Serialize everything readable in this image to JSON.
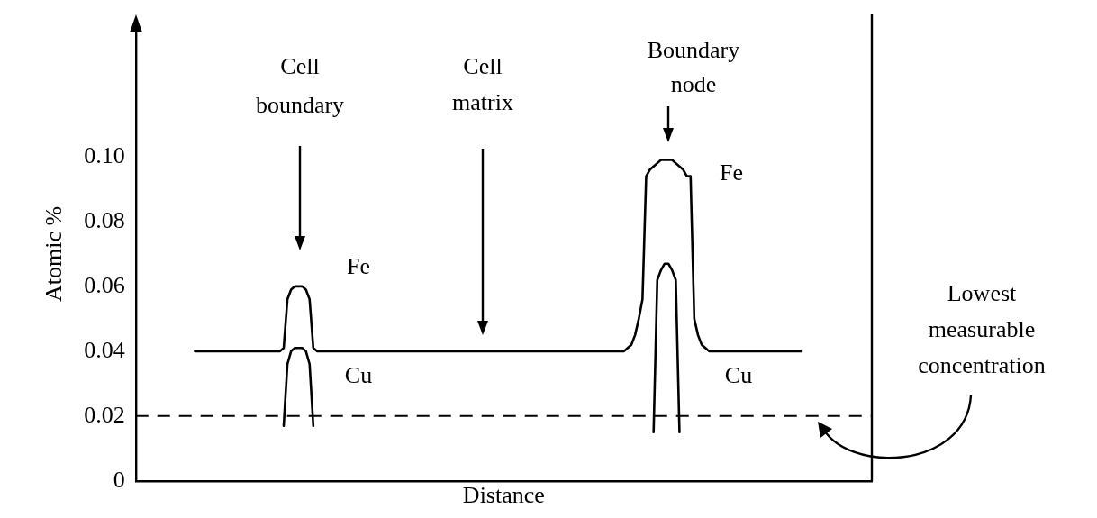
{
  "chart_data": {
    "type": "line",
    "xlabel": "Distance",
    "ylabel": "Atomic %",
    "ylim": [
      0,
      0.14
    ],
    "yticks": [
      0,
      0.02,
      0.04,
      0.06,
      0.08,
      {
        "value": 0.1,
        "label": "0.10"
      }
    ],
    "tick_labels": "y",
    "grid": false,
    "legend": false,
    "marker": "none",
    "line_style": "solid",
    "categories": [
      null,
      null,
      null,
      null,
      null,
      null,
      null,
      null,
      null,
      null,
      null,
      null,
      null,
      null,
      null,
      null,
      null,
      null,
      null,
      null,
      null,
      null,
      null,
      null,
      null,
      null,
      null,
      null,
      null,
      null,
      null,
      null,
      null,
      null,
      null,
      null,
      null,
      null,
      null,
      null,
      null,
      null,
      null,
      null,
      null,
      null,
      null,
      null,
      null,
      null,
      null,
      null,
      null,
      null,
      null,
      null,
      null,
      null,
      null,
      null,
      null,
      null,
      null,
      null,
      null,
      null,
      null,
      null,
      null,
      null,
      null,
      null,
      null,
      null,
      null,
      null,
      null,
      null,
      null,
      null,
      null,
      null,
      null,
      null,
      null,
      null,
      null,
      null,
      null,
      null,
      null,
      null,
      null,
      null,
      null,
      null,
      null,
      null,
      null,
      null,
      null,
      null,
      null,
      null,
      null,
      null,
      null,
      null,
      null,
      null,
      null,
      null,
      null,
      null,
      null,
      null,
      null,
      null,
      null,
      null,
      null,
      null,
      null,
      null,
      null,
      null,
      null,
      null,
      null,
      null,
      null,
      null,
      null,
      null,
      null,
      null,
      null,
      null,
      null,
      null,
      null,
      null,
      null,
      null,
      null,
      null,
      null,
      null,
      null,
      null,
      null,
      null,
      null,
      null,
      null,
      null,
      null,
      null,
      null,
      null,
      null,
      null,
      null,
      null,
      null,
      null,
      null,
      null,
      null,
      null,
      null,
      null,
      null,
      null,
      null,
      null,
      null,
      null,
      null,
      null,
      null,
      null,
      null,
      null,
      null,
      null,
      null,
      null,
      null,
      null,
      null,
      null,
      null,
      null,
      null,
      null,
      null,
      null,
      null,
      null
    ],
    "series": [
      {
        "color": "#000000",
        "values": [
          null,
          null,
          null,
          null,
          null,
          null,
          null,
          null,
          null,
          null,
          null,
          null,
          null,
          null,
          null,
          null,
          0.04,
          0.04,
          0.04,
          0.04,
          0.04,
          0.04,
          0.04,
          0.04,
          0.04,
          0.04,
          0.04,
          0.04,
          0.04,
          0.04,
          0.04,
          0.04,
          0.04,
          0.04,
          0.04,
          0.04,
          0.04,
          0.04,
          0.04,
          0.04,
          0.041,
          0.056,
          0.059,
          0.06,
          0.06,
          0.06,
          0.059,
          0.056,
          0.041,
          0.04,
          0.04,
          0.04,
          0.04,
          0.04,
          0.04,
          0.04,
          0.04,
          0.04,
          0.04,
          0.04,
          0.04,
          0.04,
          0.04,
          0.04,
          0.04,
          0.04,
          0.04,
          0.04,
          0.04,
          0.04,
          0.04,
          0.04,
          0.04,
          0.04,
          0.04,
          0.04,
          0.04,
          0.04,
          0.04,
          0.04,
          0.04,
          0.04,
          0.04,
          0.04,
          0.04,
          0.04,
          0.04,
          0.04,
          0.04,
          0.04,
          0.04,
          0.04,
          0.04,
          0.04,
          0.04,
          0.04,
          0.04,
          0.04,
          0.04,
          0.04,
          0.04,
          0.04,
          0.04,
          0.04,
          0.04,
          0.04,
          0.04,
          0.04,
          0.04,
          0.04,
          0.04,
          0.04,
          0.04,
          0.04,
          0.04,
          0.04,
          0.04,
          0.04,
          0.04,
          0.04,
          0.04,
          0.04,
          0.04,
          0.04,
          0.04,
          0.04,
          0.04,
          0.04,
          0.04,
          0.04,
          0.04,
          0.04,
          0.04,
          0.041,
          0.042,
          0.045,
          0.05,
          0.056,
          0.094,
          0.096,
          0.097,
          0.098,
          0.099,
          0.099,
          0.099,
          0.099,
          0.098,
          0.097,
          0.096,
          0.094,
          0.094,
          0.05,
          0.045,
          0.042,
          0.041,
          0.04,
          0.04,
          0.04,
          0.04,
          0.04,
          0.04,
          0.04,
          0.04,
          0.04,
          0.04,
          0.04,
          0.04,
          0.04,
          0.04,
          0.04,
          0.04,
          0.04,
          0.04,
          0.04,
          0.04,
          0.04,
          0.04,
          0.04,
          0.04,
          0.04,
          0.04,
          null,
          null,
          null,
          null,
          null,
          null,
          null,
          null,
          null,
          null,
          null,
          null,
          null,
          null,
          null,
          null,
          null,
          null,
          null
        ]
      },
      {
        "color": "#000000",
        "values": [
          null,
          null,
          null,
          null,
          null,
          null,
          null,
          null,
          null,
          null,
          null,
          null,
          null,
          null,
          null,
          null,
          null,
          null,
          null,
          null,
          null,
          null,
          null,
          null,
          null,
          null,
          null,
          null,
          null,
          null,
          null,
          null,
          null,
          null,
          null,
          null,
          null,
          null,
          null,
          null,
          0.017,
          0.036,
          0.04,
          0.041,
          0.041,
          0.041,
          0.04,
          0.036,
          0.017,
          null,
          null,
          null,
          null,
          null,
          null,
          null,
          null,
          null,
          null,
          null,
          null,
          null,
          null,
          null,
          null,
          null,
          null,
          null,
          null,
          null,
          null,
          null,
          null,
          null,
          null,
          null,
          null,
          null,
          null,
          null,
          null,
          null,
          null,
          null,
          null,
          null,
          null,
          null,
          null,
          null,
          null,
          null,
          null,
          null,
          null,
          null,
          null,
          null,
          null,
          null,
          null,
          null,
          null,
          null,
          null,
          null,
          null,
          null,
          null,
          null,
          null,
          null,
          null,
          null,
          null,
          null,
          null,
          null,
          null,
          null,
          null,
          null,
          null,
          null,
          null,
          null,
          null,
          null,
          null,
          null,
          null,
          null,
          null,
          null,
          null,
          null,
          null,
          null,
          null,
          null,
          0.015,
          0.062,
          0.065,
          0.067,
          0.067,
          0.065,
          0.062,
          0.015,
          null,
          null,
          null,
          null,
          null,
          null,
          null,
          null,
          null,
          null,
          null,
          null,
          null,
          null,
          null,
          null,
          null,
          null,
          null,
          null,
          null,
          null,
          null,
          null,
          null,
          null,
          null,
          null,
          null,
          null,
          null,
          null,
          null,
          null,
          null,
          null,
          null,
          null,
          null,
          null,
          null,
          null,
          null,
          null,
          null,
          null,
          null,
          null,
          null,
          null,
          null,
          null
        ]
      }
    ],
    "ref_lines": [
      {
        "axis": "y",
        "value": 0.02,
        "label": "Lowest measurable concentration",
        "line_style": "dashed",
        "color": "#000000"
      }
    ],
    "annotations": [
      "Cell boundary",
      "Cell matrix",
      "Boundary node",
      "Fe",
      "Cu",
      "Fe",
      "Cu"
    ]
  }
}
